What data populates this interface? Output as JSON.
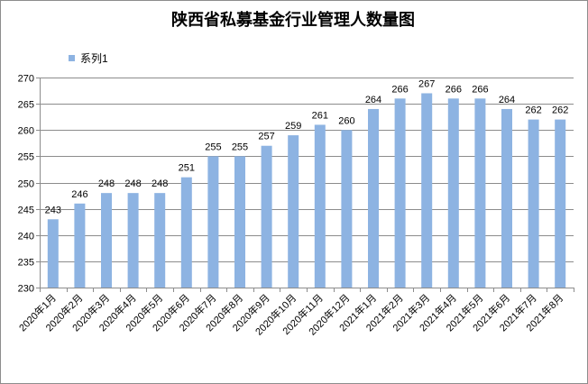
{
  "chart_data": {
    "type": "bar",
    "title": "陕西省私募基金行业管理人数量图",
    "xlabel": "",
    "ylabel": "",
    "ylim": [
      230,
      270
    ],
    "yticks": [
      230,
      235,
      240,
      245,
      250,
      255,
      260,
      265,
      270
    ],
    "legend_position": "top-left",
    "grid": true,
    "categories": [
      "2020年1月",
      "2020年2月",
      "2020年3月",
      "2020年4月",
      "2020年5月",
      "2020年6月",
      "2020年7月",
      "2020年8月",
      "2020年9月",
      "2020年10月",
      "2020年11月",
      "2020年12月",
      "2021年1月",
      "2021年2月",
      "2021年3月",
      "2021年4月",
      "2021年5月",
      "2021年6月",
      "2021年7月",
      "2021年8月"
    ],
    "series": [
      {
        "name": "系列1",
        "color": "#8db3e2",
        "values": [
          243,
          246,
          248,
          248,
          248,
          251,
          255,
          255,
          257,
          259,
          261,
          260,
          264,
          266,
          267,
          266,
          266,
          264,
          262,
          262
        ]
      }
    ]
  }
}
